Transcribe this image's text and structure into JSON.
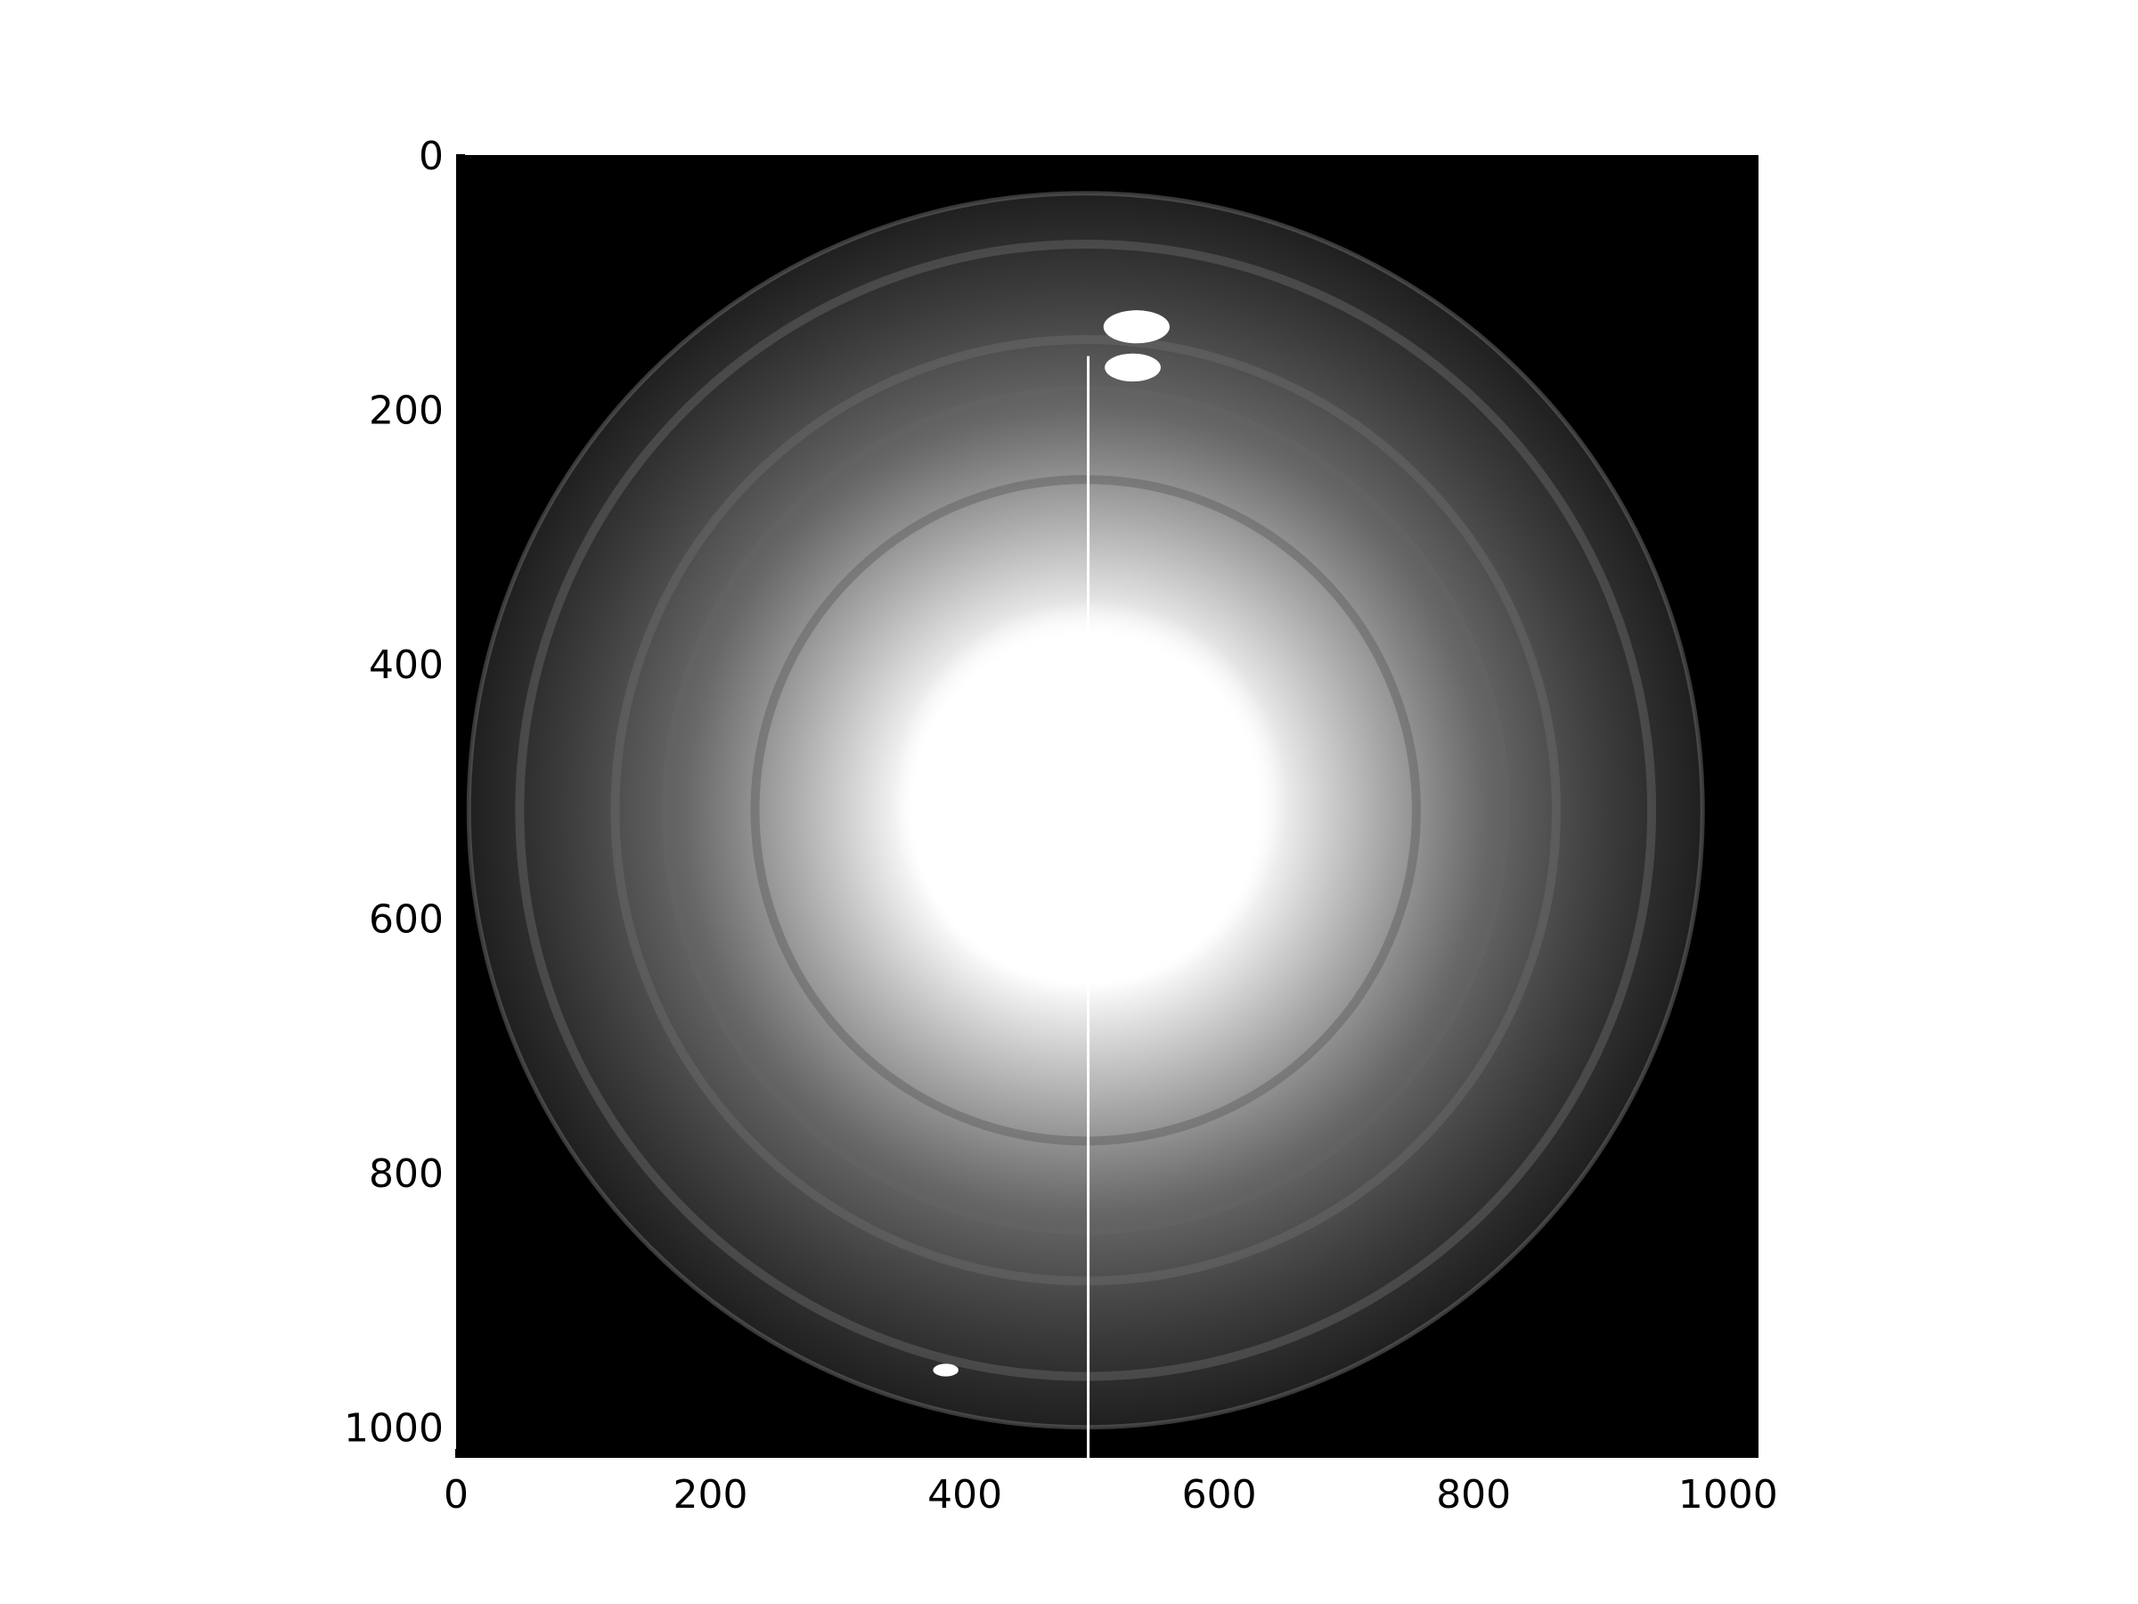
{
  "chart_data": {
    "type": "heatmap",
    "title": "",
    "xlabel": "",
    "ylabel": "",
    "xlim": [
      0,
      1024
    ],
    "ylim": [
      1024,
      0
    ],
    "colormap": "gray",
    "background_color": "#000000",
    "x_ticks": [
      0,
      200,
      400,
      600,
      800,
      1000
    ],
    "y_ticks": [
      0,
      200,
      400,
      600,
      800,
      1000
    ],
    "x_tick_labels": [
      "0",
      "200",
      "400",
      "600",
      "800",
      "1000"
    ],
    "y_tick_labels": [
      "0",
      "200",
      "400",
      "600",
      "800",
      "1000"
    ],
    "grid": false,
    "image": {
      "description_kind": "diffraction-pattern",
      "outer_ring_center": [
        495,
        515
      ],
      "outer_ring_radius": 485,
      "rings": [
        {
          "radius": 485,
          "intensity": 0.22
        },
        {
          "radius": 445,
          "intensity": 0.18
        },
        {
          "radius": 370,
          "intensity": 0.22
        },
        {
          "radius": 330,
          "intensity": 0.2
        },
        {
          "radius": 260,
          "intensity": 0.2
        }
      ],
      "central_spot": {
        "center": [
          498,
          505
        ],
        "radius": 135,
        "intensity": 1.0
      },
      "bright_spots": [
        {
          "x": 535,
          "y": 135,
          "rx": 26,
          "ry": 13,
          "intensity": 1.0
        },
        {
          "x": 532,
          "y": 167,
          "rx": 22,
          "ry": 11,
          "intensity": 1.0
        },
        {
          "x": 385,
          "y": 955,
          "rx": 10,
          "ry": 5,
          "intensity": 1.0
        }
      ],
      "beam_stop_line": {
        "x": 497,
        "y_start": 158,
        "y_end": 1024
      }
    }
  }
}
